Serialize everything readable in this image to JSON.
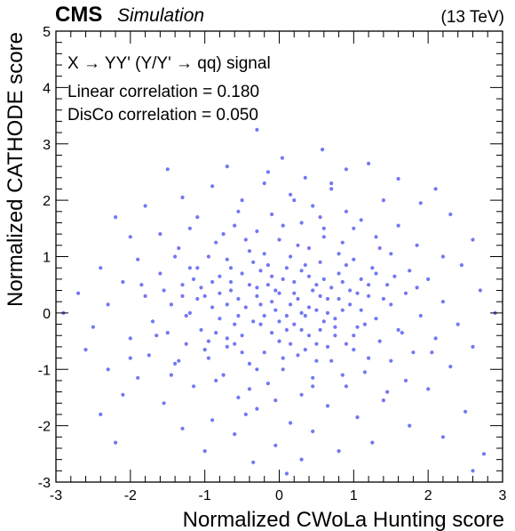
{
  "header": {
    "experiment": "CMS",
    "status": "Simulation",
    "energy": "(13 TeV)"
  },
  "annotations": [
    "X → YY' (Y/Y' → qq) signal",
    "Linear correlation = 0.180",
    "DisCo correlation = 0.050"
  ],
  "colors": {
    "points": "#5a5ff0",
    "axes": "#000000"
  },
  "chart_data": {
    "type": "scatter",
    "xlabel": "Normalized CWoLa Hunting score",
    "ylabel": "Normalized CATHODE score",
    "xlim": [
      -3,
      3
    ],
    "ylim": [
      -3,
      5
    ],
    "xticks": [
      -3,
      -2,
      -1,
      0,
      1,
      2,
      3
    ],
    "yticks": [
      -3,
      -2,
      -1,
      0,
      1,
      2,
      3,
      4,
      5
    ],
    "grid": false,
    "series": [
      {
        "points": [
          [
            -0.3,
            3.25
          ],
          [
            0.58,
            2.9
          ],
          [
            0.04,
            2.75
          ],
          [
            1.2,
            2.65
          ],
          [
            -0.7,
            2.6
          ],
          [
            0.9,
            2.55
          ],
          [
            -1.5,
            2.55
          ],
          [
            0.35,
            2.4
          ],
          [
            1.6,
            2.38
          ],
          [
            -0.2,
            2.3
          ],
          [
            2.1,
            2.2
          ],
          [
            -0.9,
            2.25
          ],
          [
            0.7,
            2.2
          ],
          [
            -1.3,
            2.05
          ],
          [
            0.15,
            2.1
          ],
          [
            1.4,
            2.0
          ],
          [
            -0.5,
            2.0
          ],
          [
            1.9,
            1.95
          ],
          [
            0.45,
            1.9
          ],
          [
            -1.8,
            1.9
          ],
          [
            2.3,
            1.75
          ],
          [
            -2.2,
            1.7
          ],
          [
            0.9,
            1.8
          ],
          [
            -0.1,
            1.75
          ],
          [
            1.1,
            1.65
          ],
          [
            -1.1,
            1.7
          ],
          [
            0.3,
            1.6
          ],
          [
            -0.6,
            1.55
          ],
          [
            1.6,
            1.55
          ],
          [
            -1.6,
            1.4
          ],
          [
            2.6,
            1.3
          ],
          [
            0.6,
            1.5
          ],
          [
            -0.3,
            1.45
          ],
          [
            1.3,
            1.35
          ],
          [
            -2.0,
            1.35
          ],
          [
            0.0,
            1.3
          ],
          [
            0.85,
            1.25
          ],
          [
            -0.85,
            1.25
          ],
          [
            1.85,
            1.2
          ],
          [
            -1.35,
            1.15
          ],
          [
            2.2,
            1.0
          ],
          [
            0.4,
            1.15
          ],
          [
            -0.4,
            1.1
          ],
          [
            1.5,
            1.05
          ],
          [
            -1.9,
            0.95
          ],
          [
            0.15,
            1.0
          ],
          [
            1.0,
            0.95
          ],
          [
            -0.7,
            0.95
          ],
          [
            2.45,
            0.85
          ],
          [
            -2.4,
            0.8
          ],
          [
            0.55,
            0.9
          ],
          [
            -0.15,
            0.85
          ],
          [
            1.25,
            0.8
          ],
          [
            -1.1,
            0.8
          ],
          [
            1.75,
            0.75
          ],
          [
            -1.6,
            0.7
          ],
          [
            0.3,
            0.75
          ],
          [
            -0.5,
            0.7
          ],
          [
            0.8,
            0.7
          ],
          [
            2.0,
            0.6
          ],
          [
            -2.1,
            0.55
          ],
          [
            0.05,
            0.6
          ],
          [
            1.1,
            0.6
          ],
          [
            -0.9,
            0.55
          ],
          [
            1.45,
            0.5
          ],
          [
            -1.3,
            0.5
          ],
          [
            0.5,
            0.5
          ],
          [
            -0.3,
            0.45
          ],
          [
            2.7,
            0.4
          ],
          [
            -2.7,
            0.35
          ],
          [
            0.95,
            0.4
          ],
          [
            -0.65,
            0.4
          ],
          [
            1.7,
            0.35
          ],
          [
            -1.8,
            0.3
          ],
          [
            0.2,
            0.35
          ],
          [
            1.2,
            0.3
          ],
          [
            -1.0,
            0.3
          ],
          [
            0.65,
            0.25
          ],
          [
            -0.1,
            0.2
          ],
          [
            2.2,
            0.2
          ],
          [
            -2.3,
            0.15
          ],
          [
            1.5,
            0.15
          ],
          [
            -1.45,
            0.15
          ],
          [
            0.4,
            0.1
          ],
          [
            -0.45,
            0.1
          ],
          [
            0.85,
            0.05
          ],
          [
            2.9,
            0.0
          ],
          [
            -2.9,
            0.0
          ],
          [
            -1.2,
            0.0
          ],
          [
            1.9,
            -0.05
          ],
          [
            0.1,
            -0.05
          ],
          [
            -0.8,
            -0.1
          ],
          [
            1.3,
            -0.1
          ],
          [
            -1.7,
            -0.15
          ],
          [
            0.6,
            -0.15
          ],
          [
            -0.25,
            -0.2
          ],
          [
            2.4,
            -0.2
          ],
          [
            -2.5,
            -0.25
          ],
          [
            1.05,
            -0.25
          ],
          [
            -1.05,
            -0.3
          ],
          [
            0.3,
            -0.3
          ],
          [
            1.65,
            -0.35
          ],
          [
            -1.5,
            -0.35
          ],
          [
            -0.5,
            -0.4
          ],
          [
            0.75,
            -0.4
          ],
          [
            2.1,
            -0.45
          ],
          [
            -2.0,
            -0.45
          ],
          [
            0.0,
            -0.5
          ],
          [
            1.35,
            -0.5
          ],
          [
            -1.25,
            -0.55
          ],
          [
            0.5,
            -0.55
          ],
          [
            -0.7,
            -0.6
          ],
          [
            2.6,
            -0.6
          ],
          [
            -2.6,
            -0.65
          ],
          [
            1.0,
            -0.65
          ],
          [
            -0.2,
            -0.7
          ],
          [
            1.8,
            -0.7
          ],
          [
            -1.75,
            -0.75
          ],
          [
            0.25,
            -0.75
          ],
          [
            -0.95,
            -0.8
          ],
          [
            1.5,
            -0.85
          ],
          [
            0.7,
            -0.85
          ],
          [
            -1.4,
            -0.9
          ],
          [
            -0.4,
            -0.9
          ],
          [
            2.3,
            -0.95
          ],
          [
            -2.3,
            -1.0
          ],
          [
            0.05,
            -1.0
          ],
          [
            1.15,
            -1.05
          ],
          [
            -0.75,
            -1.1
          ],
          [
            0.45,
            -1.15
          ],
          [
            -1.9,
            -1.15
          ],
          [
            1.7,
            -1.2
          ],
          [
            -0.15,
            -1.25
          ],
          [
            -1.15,
            -1.3
          ],
          [
            0.9,
            -1.3
          ],
          [
            2.0,
            -1.35
          ],
          [
            -2.1,
            -1.45
          ],
          [
            0.3,
            -1.45
          ],
          [
            -0.55,
            -1.5
          ],
          [
            1.4,
            -1.55
          ],
          [
            -1.55,
            -1.6
          ],
          [
            0.65,
            -1.65
          ],
          [
            -0.3,
            -1.7
          ],
          [
            2.5,
            -1.75
          ],
          [
            -2.4,
            -1.8
          ],
          [
            1.05,
            -1.85
          ],
          [
            -0.9,
            -1.9
          ],
          [
            0.15,
            -1.95
          ],
          [
            1.75,
            -2.0
          ],
          [
            -1.3,
            -2.05
          ],
          [
            0.45,
            -2.1
          ],
          [
            -0.6,
            -2.15
          ],
          [
            2.2,
            -2.2
          ],
          [
            -2.2,
            -2.3
          ],
          [
            1.25,
            -2.3
          ],
          [
            -0.05,
            -2.35
          ],
          [
            0.8,
            -2.45
          ],
          [
            -1.0,
            -2.45
          ],
          [
            2.75,
            -2.5
          ],
          [
            0.3,
            -2.6
          ],
          [
            -0.35,
            -2.65
          ],
          [
            2.6,
            -2.8
          ],
          [
            0.1,
            -2.85
          ],
          [
            -0.7,
            0.15
          ],
          [
            0.35,
            -0.05
          ],
          [
            -0.15,
            0.5
          ],
          [
            0.55,
            0.3
          ],
          [
            -0.35,
            -0.15
          ],
          [
            0.2,
            0.55
          ],
          [
            -0.55,
            0.25
          ],
          [
            0.75,
            -0.1
          ],
          [
            -0.05,
            0.05
          ],
          [
            0.95,
            0.15
          ],
          [
            -0.85,
            -0.35
          ],
          [
            0.1,
            -0.3
          ],
          [
            0.4,
            0.65
          ],
          [
            -0.25,
            0.75
          ],
          [
            0.65,
            -0.6
          ],
          [
            -0.6,
            -0.55
          ],
          [
            1.1,
            0.05
          ],
          [
            -1.1,
            0.25
          ],
          [
            0.25,
            1.2
          ],
          [
            -0.45,
            1.3
          ],
          [
            0.8,
            1.05
          ],
          [
            -0.8,
            0.65
          ],
          [
            1.3,
            0.7
          ],
          [
            -1.25,
            -0.05
          ],
          [
            0.5,
            -0.85
          ],
          [
            -0.3,
            -1.0
          ],
          [
            0.0,
            0.35
          ],
          [
            0.15,
            -0.55
          ],
          [
            -0.1,
            -0.35
          ],
          [
            0.7,
            0.45
          ],
          [
            -0.65,
            0.55
          ],
          [
            1.0,
            -0.4
          ],
          [
            -1.0,
            -0.65
          ],
          [
            0.35,
            0.85
          ],
          [
            -0.2,
            1.05
          ],
          [
            0.6,
            1.35
          ],
          [
            -0.75,
            1.4
          ],
          [
            1.2,
            -0.8
          ],
          [
            -1.35,
            -0.85
          ],
          [
            0.45,
            -1.3
          ],
          [
            -0.4,
            -1.35
          ],
          [
            0.9,
            0.85
          ],
          [
            -0.95,
            1.0
          ],
          [
            1.55,
            0.65
          ],
          [
            -1.55,
            0.4
          ],
          [
            0.05,
            1.55
          ],
          [
            -0.05,
            -1.55
          ],
          [
            1.35,
            1.15
          ],
          [
            -1.4,
            1.0
          ],
          [
            0.85,
            -1.1
          ],
          [
            -0.85,
            -1.2
          ],
          [
            0.55,
            1.7
          ],
          [
            -0.55,
            1.8
          ],
          [
            1.0,
            1.5
          ],
          [
            -1.2,
            1.5
          ],
          [
            1.6,
            -0.3
          ],
          [
            -1.65,
            -0.4
          ],
          [
            0.2,
            2.0
          ],
          [
            -0.45,
            -1.8
          ],
          [
            1.45,
            -1.4
          ],
          [
            -1.45,
            -1.1
          ],
          [
            0.7,
            2.3
          ],
          [
            -0.15,
            2.5
          ],
          [
            1.85,
            0.45
          ],
          [
            -1.85,
            0.5
          ],
          [
            2.05,
            -0.7
          ],
          [
            -2.0,
            -0.8
          ],
          [
            0.3,
            0.0
          ],
          [
            -0.3,
            0.3
          ],
          [
            0.1,
            0.8
          ],
          [
            -0.6,
            -0.2
          ],
          [
            0.5,
            0.05
          ],
          [
            0.0,
            -0.15
          ],
          [
            0.25,
            0.25
          ],
          [
            -0.2,
            -0.05
          ],
          [
            0.4,
            -0.4
          ],
          [
            -0.4,
            0.5
          ],
          [
            0.6,
            0.6
          ],
          [
            -0.7,
            -0.45
          ],
          [
            0.8,
            0.25
          ],
          [
            -0.9,
            0.1
          ],
          [
            1.05,
            0.35
          ],
          [
            -1.05,
            0.45
          ],
          [
            0.15,
            0.15
          ],
          [
            -0.1,
            0.65
          ],
          [
            0.35,
            -0.65
          ],
          [
            -0.35,
            0.9
          ],
          [
            0.75,
            -0.25
          ],
          [
            -0.5,
            -0.7
          ],
          [
            0.9,
            -0.55
          ],
          [
            -0.8,
            0.35
          ],
          [
            1.2,
            0.5
          ],
          [
            -1.15,
            0.6
          ],
          [
            0.05,
            -0.8
          ],
          [
            -0.25,
            0.15
          ],
          [
            0.45,
            0.4
          ],
          [
            0.65,
            0.0
          ],
          [
            -0.55,
            -0.05
          ],
          [
            0.2,
            -0.2
          ],
          [
            -0.05,
            0.4
          ],
          [
            1.4,
            0.25
          ],
          [
            -1.3,
            0.3
          ],
          [
            0.55,
            -0.3
          ],
          [
            -0.65,
            0.8
          ],
          [
            0.85,
            0.55
          ],
          [
            -0.95,
            -0.5
          ],
          [
            1.15,
            -0.2
          ],
          [
            -1.2,
            0.8
          ]
        ]
      }
    ]
  }
}
